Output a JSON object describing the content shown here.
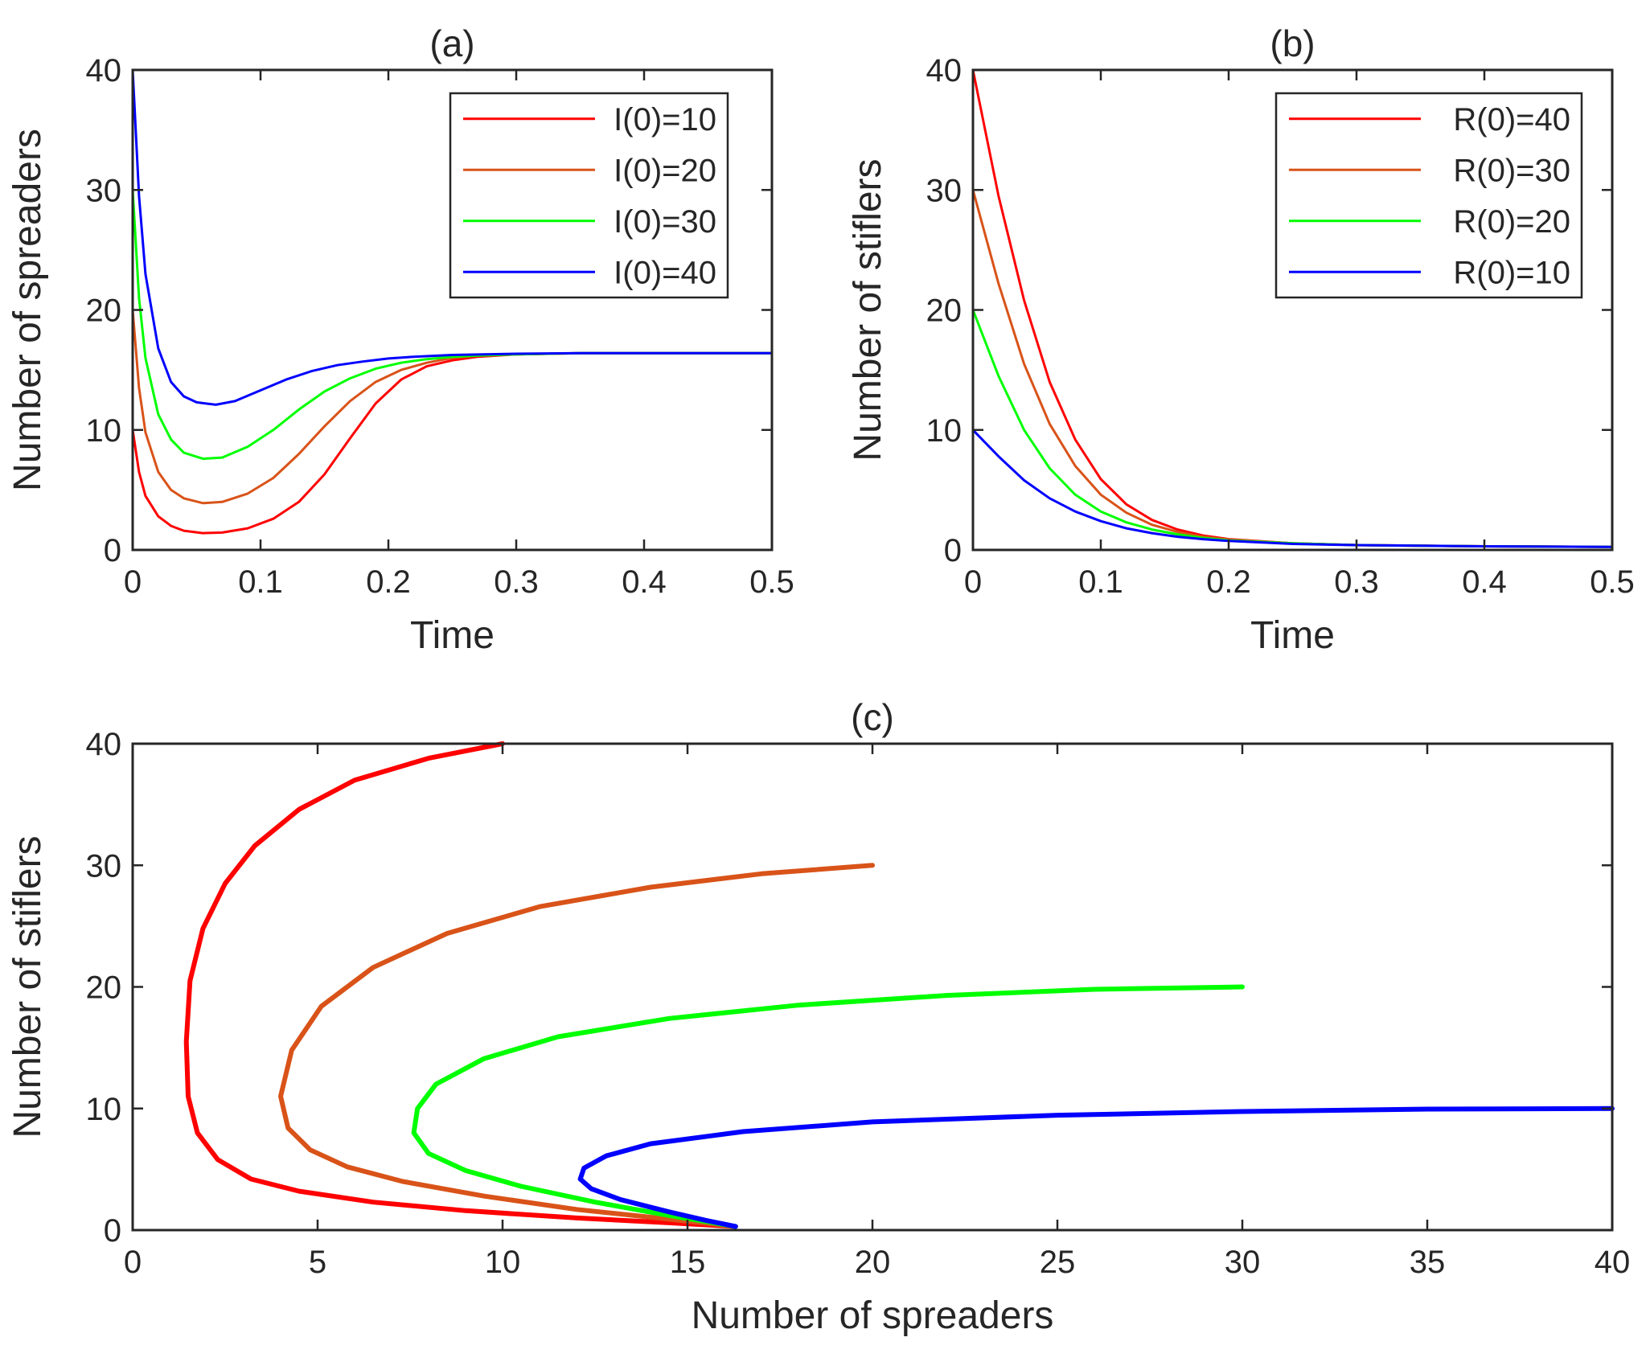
{
  "chart_data": [
    {
      "id": "a",
      "type": "line",
      "title": "(a)",
      "xlabel": "Time",
      "ylabel": "Number of spreaders",
      "xlim": [
        0,
        0.5
      ],
      "ylim": [
        0,
        40
      ],
      "xticks": [
        0,
        0.1,
        0.2,
        0.3,
        0.4,
        0.5
      ],
      "yticks": [
        0,
        10,
        20,
        30,
        40
      ],
      "legend_position": "top-right",
      "grid": false,
      "series": [
        {
          "name": "I(0)=10",
          "color": "#ff0000",
          "x": [
            0,
            0.005,
            0.01,
            0.02,
            0.03,
            0.04,
            0.055,
            0.07,
            0.09,
            0.11,
            0.13,
            0.15,
            0.17,
            0.19,
            0.21,
            0.23,
            0.25,
            0.27,
            0.3,
            0.35,
            0.4,
            0.45,
            0.5
          ],
          "y": [
            10,
            6.5,
            4.5,
            2.8,
            2.0,
            1.6,
            1.4,
            1.45,
            1.8,
            2.6,
            4.0,
            6.3,
            9.3,
            12.2,
            14.2,
            15.3,
            15.8,
            16.1,
            16.3,
            16.4,
            16.4,
            16.4,
            16.4
          ]
        },
        {
          "name": "I(0)=20",
          "color": "#d95319",
          "x": [
            0,
            0.005,
            0.01,
            0.02,
            0.03,
            0.04,
            0.055,
            0.07,
            0.09,
            0.11,
            0.13,
            0.15,
            0.17,
            0.19,
            0.21,
            0.23,
            0.25,
            0.27,
            0.3,
            0.35,
            0.4,
            0.45,
            0.5
          ],
          "y": [
            20,
            13.5,
            9.8,
            6.5,
            5.0,
            4.3,
            3.9,
            4.0,
            4.7,
            6.0,
            8.0,
            10.3,
            12.4,
            14.0,
            15.0,
            15.6,
            16.0,
            16.2,
            16.3,
            16.4,
            16.4,
            16.4,
            16.4
          ]
        },
        {
          "name": "I(0)=30",
          "color": "#00ff00",
          "x": [
            0,
            0.005,
            0.01,
            0.02,
            0.03,
            0.04,
            0.055,
            0.07,
            0.09,
            0.11,
            0.13,
            0.15,
            0.17,
            0.19,
            0.21,
            0.23,
            0.25,
            0.27,
            0.3,
            0.35,
            0.4,
            0.45,
            0.5
          ],
          "y": [
            30,
            21.0,
            16.0,
            11.3,
            9.2,
            8.1,
            7.6,
            7.7,
            8.6,
            10.0,
            11.7,
            13.2,
            14.3,
            15.1,
            15.6,
            15.9,
            16.1,
            16.2,
            16.3,
            16.4,
            16.4,
            16.4,
            16.4
          ]
        },
        {
          "name": "I(0)=40",
          "color": "#0000ff",
          "x": [
            0,
            0.005,
            0.01,
            0.02,
            0.03,
            0.04,
            0.05,
            0.065,
            0.08,
            0.1,
            0.12,
            0.14,
            0.16,
            0.18,
            0.2,
            0.22,
            0.25,
            0.3,
            0.35,
            0.4,
            0.45,
            0.5
          ],
          "y": [
            40,
            29.5,
            23.0,
            16.8,
            14.0,
            12.8,
            12.3,
            12.1,
            12.4,
            13.3,
            14.2,
            14.9,
            15.4,
            15.7,
            15.95,
            16.1,
            16.25,
            16.35,
            16.4,
            16.4,
            16.4,
            16.4
          ]
        }
      ]
    },
    {
      "id": "b",
      "type": "line",
      "title": "(b)",
      "xlabel": "Time",
      "ylabel": "Number of stiflers",
      "xlim": [
        0,
        0.5
      ],
      "ylim": [
        0,
        40
      ],
      "xticks": [
        0,
        0.1,
        0.2,
        0.3,
        0.4,
        0.5
      ],
      "yticks": [
        0,
        10,
        20,
        30,
        40
      ],
      "legend_position": "top-right",
      "grid": false,
      "series": [
        {
          "name": "R(0)=40",
          "color": "#ff0000",
          "x": [
            0,
            0.02,
            0.04,
            0.06,
            0.08,
            0.1,
            0.12,
            0.14,
            0.16,
            0.18,
            0.2,
            0.25,
            0.3,
            0.4,
            0.5
          ],
          "y": [
            40,
            29.5,
            20.8,
            14.0,
            9.2,
            5.9,
            3.8,
            2.5,
            1.7,
            1.2,
            0.9,
            0.55,
            0.4,
            0.3,
            0.25
          ]
        },
        {
          "name": "R(0)=30",
          "color": "#d95319",
          "x": [
            0,
            0.02,
            0.04,
            0.06,
            0.08,
            0.1,
            0.12,
            0.14,
            0.16,
            0.18,
            0.2,
            0.25,
            0.3,
            0.4,
            0.5
          ],
          "y": [
            30,
            22.2,
            15.5,
            10.5,
            7.0,
            4.6,
            3.1,
            2.1,
            1.5,
            1.1,
            0.85,
            0.55,
            0.4,
            0.3,
            0.25
          ]
        },
        {
          "name": "R(0)=20",
          "color": "#00ff00",
          "x": [
            0,
            0.02,
            0.04,
            0.06,
            0.08,
            0.1,
            0.12,
            0.14,
            0.16,
            0.18,
            0.2,
            0.25,
            0.3,
            0.4,
            0.5
          ],
          "y": [
            20,
            14.5,
            10.0,
            6.8,
            4.6,
            3.2,
            2.3,
            1.7,
            1.3,
            1.0,
            0.8,
            0.55,
            0.4,
            0.3,
            0.25
          ]
        },
        {
          "name": "R(0)=10",
          "color": "#0000ff",
          "x": [
            0,
            0.02,
            0.04,
            0.06,
            0.08,
            0.1,
            0.12,
            0.14,
            0.16,
            0.18,
            0.2,
            0.25,
            0.3,
            0.4,
            0.5
          ],
          "y": [
            10,
            7.8,
            5.8,
            4.3,
            3.2,
            2.4,
            1.8,
            1.4,
            1.1,
            0.9,
            0.75,
            0.5,
            0.4,
            0.3,
            0.25
          ]
        }
      ]
    },
    {
      "id": "c",
      "type": "line",
      "title": "(c)",
      "xlabel": "Number of spreaders",
      "ylabel": "Number of stiflers",
      "xlim": [
        0,
        40
      ],
      "ylim": [
        0,
        40
      ],
      "xticks": [
        0,
        5,
        10,
        15,
        20,
        25,
        30,
        35,
        40
      ],
      "yticks": [
        0,
        10,
        20,
        30,
        40
      ],
      "grid": false,
      "series": [
        {
          "color": "#ff0000",
          "x": [
            10.0,
            8.0,
            6.0,
            4.5,
            3.3,
            2.5,
            1.9,
            1.55,
            1.45,
            1.5,
            1.75,
            2.3,
            3.2,
            4.5,
            6.5,
            9.0,
            12.0,
            14.5,
            16.3
          ],
          "y": [
            40,
            38.8,
            37.0,
            34.6,
            31.6,
            28.5,
            24.8,
            20.5,
            15.5,
            11.0,
            8.0,
            5.8,
            4.2,
            3.2,
            2.3,
            1.6,
            1.0,
            0.6,
            0.3
          ]
        },
        {
          "color": "#d95319",
          "x": [
            20.0,
            17.0,
            14.0,
            11.0,
            8.5,
            6.5,
            5.1,
            4.3,
            4.0,
            4.2,
            4.8,
            5.8,
            7.3,
            9.5,
            12.0,
            14.5,
            16.3
          ],
          "y": [
            30,
            29.3,
            28.2,
            26.6,
            24.4,
            21.6,
            18.4,
            14.8,
            11.0,
            8.4,
            6.6,
            5.2,
            4.0,
            2.8,
            1.7,
            0.9,
            0.3
          ]
        },
        {
          "color": "#00ff00",
          "x": [
            30.0,
            26.0,
            22.0,
            18.0,
            14.5,
            11.5,
            9.5,
            8.2,
            7.7,
            7.6,
            8.0,
            9.0,
            10.5,
            12.5,
            14.5,
            16.3
          ],
          "y": [
            20,
            19.8,
            19.3,
            18.5,
            17.4,
            15.9,
            14.1,
            12.0,
            10.0,
            8.0,
            6.3,
            4.9,
            3.6,
            2.3,
            1.2,
            0.3
          ]
        },
        {
          "color": "#0000ff",
          "x": [
            40.0,
            35.0,
            30.0,
            25.0,
            20.0,
            16.5,
            14.0,
            12.8,
            12.2,
            12.1,
            12.4,
            13.2,
            14.5,
            15.5,
            16.3
          ],
          "y": [
            10,
            9.95,
            9.75,
            9.45,
            8.9,
            8.1,
            7.1,
            6.1,
            5.1,
            4.2,
            3.4,
            2.5,
            1.5,
            0.8,
            0.3
          ]
        }
      ]
    }
  ]
}
